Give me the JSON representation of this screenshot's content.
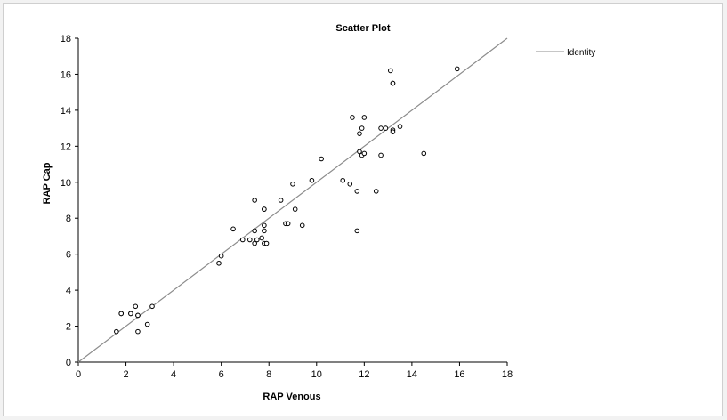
{
  "chart_data": {
    "type": "scatter",
    "title": "Scatter Plot",
    "xlabel": "RAP Venous",
    "ylabel": "RAP Cap",
    "xlim": [
      0,
      18
    ],
    "ylim": [
      0,
      18
    ],
    "xticks": [
      "0",
      "2",
      "4",
      "6",
      "8",
      "10",
      "12",
      "14",
      "16",
      "18"
    ],
    "yticks": [
      "0",
      "2",
      "4",
      "6",
      "8",
      "10",
      "12",
      "14",
      "16",
      "18"
    ],
    "grid": false,
    "legend_position": "top-right",
    "series": [
      {
        "type": "scatter",
        "marker": "open-circle",
        "color": "#000000",
        "points": [
          [
            1.6,
            1.7
          ],
          [
            1.8,
            2.7
          ],
          [
            1.8,
            2.7
          ],
          [
            2.2,
            2.7
          ],
          [
            2.2,
            2.7
          ],
          [
            2.4,
            3.1
          ],
          [
            2.5,
            2.6
          ],
          [
            2.5,
            2.6
          ],
          [
            2.5,
            1.7
          ],
          [
            2.9,
            2.1
          ],
          [
            3.1,
            3.1
          ],
          [
            5.9,
            5.5
          ],
          [
            6.0,
            5.9
          ],
          [
            6.5,
            7.4
          ],
          [
            6.9,
            6.8
          ],
          [
            7.2,
            6.8
          ],
          [
            7.4,
            9.0
          ],
          [
            7.4,
            7.3
          ],
          [
            7.4,
            6.6
          ],
          [
            7.5,
            6.8
          ],
          [
            7.7,
            6.9
          ],
          [
            7.8,
            7.6
          ],
          [
            7.8,
            7.3
          ],
          [
            7.8,
            6.6
          ],
          [
            7.9,
            6.6
          ],
          [
            7.8,
            8.5
          ],
          [
            7.8,
            8.5
          ],
          [
            8.5,
            9.0
          ],
          [
            8.7,
            7.7
          ],
          [
            8.8,
            7.7
          ],
          [
            9.0,
            9.9
          ],
          [
            9.1,
            8.5
          ],
          [
            9.4,
            7.6
          ],
          [
            9.8,
            10.1
          ],
          [
            10.2,
            11.3
          ],
          [
            11.1,
            10.1
          ],
          [
            11.4,
            9.9
          ],
          [
            11.5,
            13.6
          ],
          [
            11.7,
            9.5
          ],
          [
            11.7,
            7.3
          ],
          [
            11.8,
            11.7
          ],
          [
            11.8,
            12.7
          ],
          [
            11.9,
            13.0
          ],
          [
            11.9,
            11.5
          ],
          [
            12.0,
            13.6
          ],
          [
            12.0,
            11.6
          ],
          [
            12.5,
            9.5
          ],
          [
            12.7,
            13.0
          ],
          [
            12.7,
            11.5
          ],
          [
            12.9,
            13.0
          ],
          [
            13.1,
            16.2
          ],
          [
            13.2,
            15.5
          ],
          [
            13.2,
            15.5
          ],
          [
            13.2,
            12.9
          ],
          [
            13.2,
            12.8
          ],
          [
            13.5,
            13.1
          ],
          [
            14.5,
            11.6
          ],
          [
            15.9,
            16.3
          ]
        ]
      },
      {
        "name": "Identity",
        "type": "line",
        "color": "#8c8c8c",
        "points": [
          [
            0,
            0
          ],
          [
            18,
            18
          ]
        ]
      }
    ]
  }
}
